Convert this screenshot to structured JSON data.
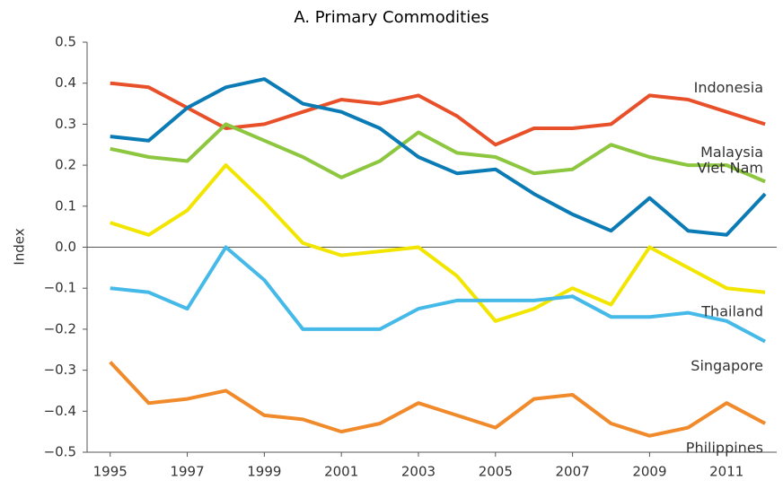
{
  "chart_data": {
    "type": "line",
    "title": "A. Primary Commodities",
    "y_label": "Index",
    "x": [
      1995,
      1996,
      1997,
      1998,
      1999,
      2000,
      2001,
      2002,
      2003,
      2004,
      2005,
      2006,
      2007,
      2008,
      2009,
      2010,
      2011,
      2012
    ],
    "xlim": [
      1994.4,
      2012.3
    ],
    "xticks": [
      1995,
      1997,
      1999,
      2001,
      2003,
      2005,
      2007,
      2009,
      2011
    ],
    "ylim": [
      -0.5,
      0.5
    ],
    "yticks": [
      0.5,
      0.4,
      0.3,
      0.2,
      0.1,
      {
        "value": 0,
        "label": "0.0"
      },
      {
        "value": -0.1,
        "label": "−0.1"
      },
      {
        "value": -0.2,
        "label": "−0.2"
      },
      {
        "value": -0.3,
        "label": "−0.3"
      },
      {
        "value": -0.4,
        "label": "−0.4"
      },
      {
        "value": -0.5,
        "label": "−0.5"
      }
    ],
    "series": [
      {
        "name": "Indonesia",
        "color": "#e8502a",
        "values": [
          0.4,
          0.39,
          0.34,
          0.29,
          0.3,
          0.33,
          0.36,
          0.35,
          0.37,
          0.32,
          0.25,
          0.29,
          0.29,
          0.3,
          0.37,
          0.36,
          0.33,
          0.3
        ]
      },
      {
        "name": "Malaysia",
        "color": "#8dc63f",
        "values": [
          0.24,
          0.22,
          0.21,
          0.3,
          0.26,
          0.22,
          0.17,
          0.21,
          0.28,
          0.23,
          0.22,
          0.18,
          0.19,
          0.25,
          0.22,
          0.2,
          0.2,
          0.16
        ]
      },
      {
        "name": "Viet Nam",
        "color": "#0b7bb5",
        "values": [
          0.27,
          0.26,
          0.34,
          0.39,
          0.41,
          0.35,
          0.33,
          0.29,
          0.22,
          0.18,
          0.19,
          0.13,
          0.08,
          0.04,
          0.12,
          0.04,
          0.03,
          0.13
        ]
      },
      {
        "name": "Thailand",
        "color": "#f2e600",
        "values": [
          0.06,
          0.03,
          0.09,
          0.2,
          0.11,
          0.01,
          -0.02,
          -0.01,
          0.0,
          -0.07,
          -0.18,
          -0.15,
          -0.1,
          -0.14,
          0.0,
          -0.05,
          -0.1,
          -0.11
        ]
      },
      {
        "name": "Singapore",
        "color": "#45b9e8",
        "values": [
          -0.1,
          -0.11,
          -0.15,
          0.0,
          -0.08,
          -0.2,
          -0.2,
          -0.2,
          -0.15,
          -0.13,
          -0.13,
          -0.13,
          -0.12,
          -0.17,
          -0.17,
          -0.16,
          -0.18,
          -0.23
        ]
      },
      {
        "name": "Philippines",
        "color": "#f08a2b",
        "values": [
          -0.28,
          -0.38,
          -0.37,
          -0.35,
          -0.41,
          -0.42,
          -0.45,
          -0.43,
          -0.38,
          -0.41,
          -0.44,
          -0.37,
          -0.36,
          -0.43,
          -0.46,
          -0.44,
          -0.38,
          -0.43
        ]
      }
    ]
  }
}
